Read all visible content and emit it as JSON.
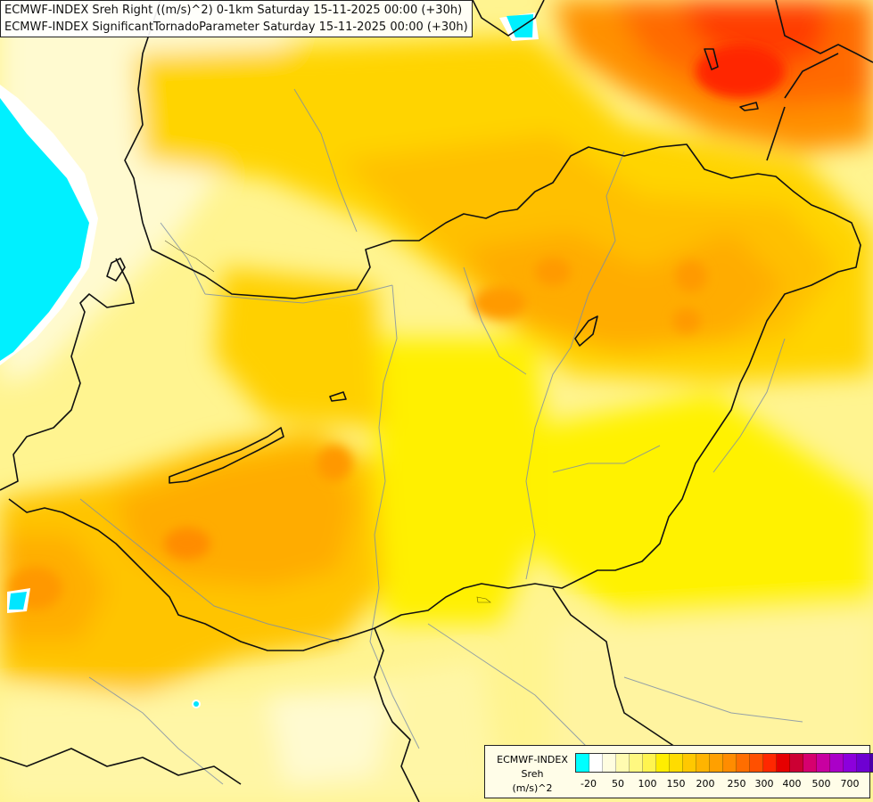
{
  "title": {
    "line1": "ECMWF-INDEX Sreh Right ((m/s)^2) 0-1km Saturday 15-11-2025 00:00 (+30h)",
    "line2": "ECMWF-INDEX SignificantTornadoParameter Saturday 15-11-2025 00:00 (+30h)"
  },
  "legend": {
    "model": "ECMWF-INDEX",
    "variable": "Sreh",
    "unit": "(m/s)^2",
    "colors": [
      "#00ffff",
      "#ffffff",
      "#fffde0",
      "#fffbb0",
      "#fff880",
      "#fff450",
      "#ffee00",
      "#ffdc00",
      "#ffc800",
      "#ffb400",
      "#ffa000",
      "#ff8c00",
      "#ff6e00",
      "#ff5000",
      "#ff2800",
      "#e60000",
      "#cc0033",
      "#d6006e",
      "#c800a0",
      "#aa00c8",
      "#8c00dc",
      "#6e00d2",
      "#4b00aa",
      "#1e0082"
    ],
    "ticks": [
      "-20",
      "50",
      "100",
      "150",
      "200",
      "250",
      "300",
      "400",
      "500",
      "700"
    ]
  }
}
